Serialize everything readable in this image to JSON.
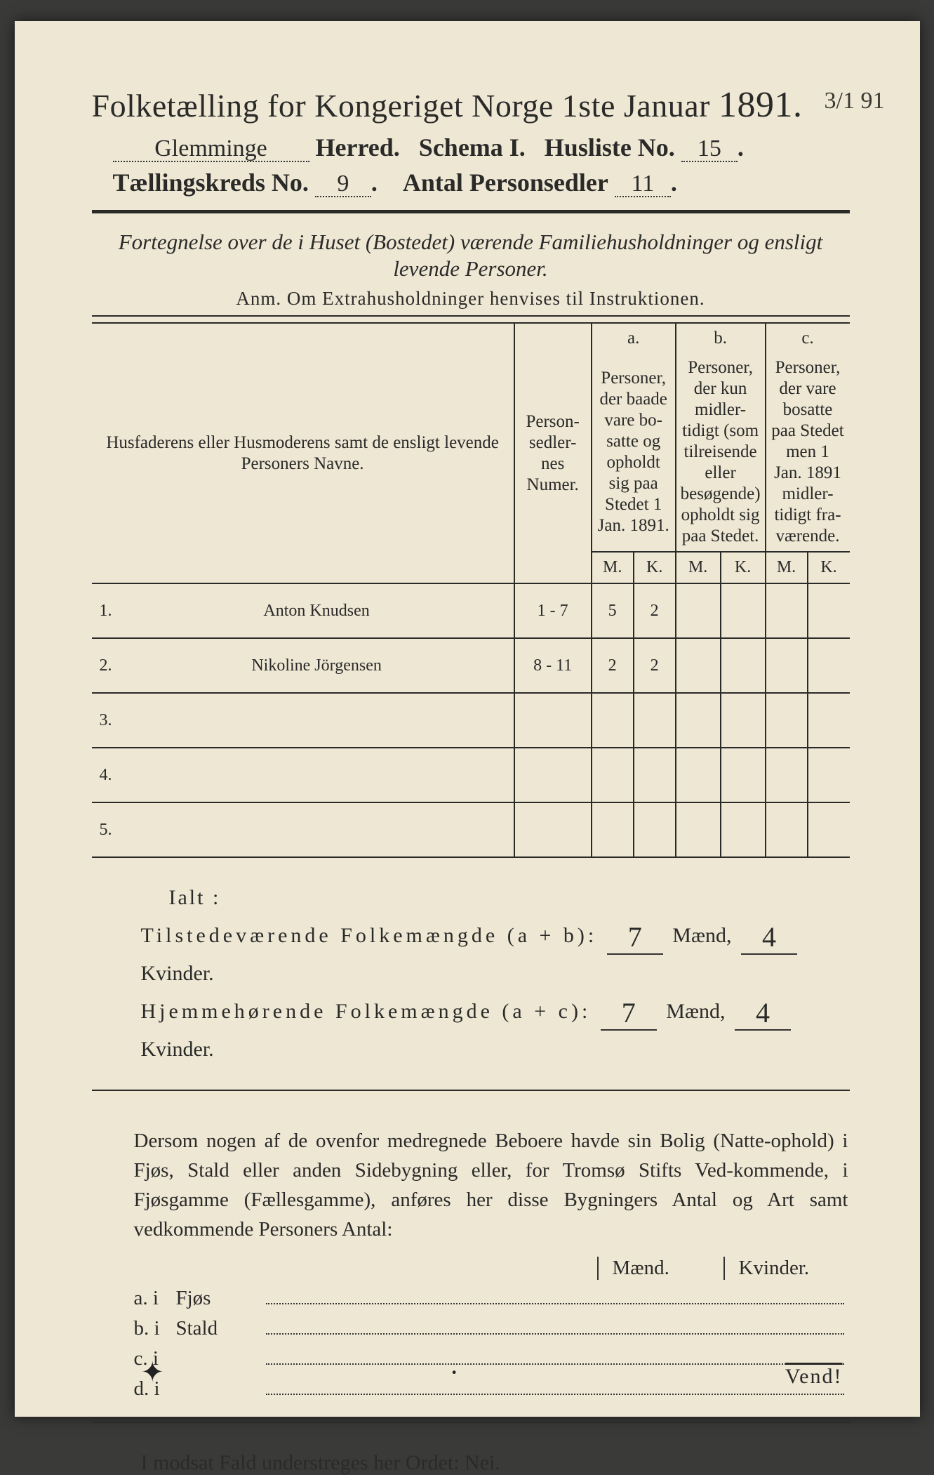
{
  "annotation_top_right": "3/1 91",
  "title": {
    "main_pre": "Folketælling for Kongeriget Norge 1ste Januar",
    "year": "1891."
  },
  "header": {
    "herred_value": "Glemminge",
    "herred_label": "Herred.",
    "schema_label": "Schema I.",
    "husliste_label": "Husliste No.",
    "husliste_value": "15",
    "kreds_label": "Tællingskreds No.",
    "kreds_value": "9",
    "sedler_label": "Antal Personsedler",
    "sedler_value": "11"
  },
  "subtitle_line1": "Fortegnelse over de i Huset (Bostedet) værende Familiehusholdninger og ensligt",
  "subtitle_line2": "levende Personer.",
  "anm": "Anm.  Om Extrahusholdninger henvises til Instruktionen.",
  "table": {
    "head_names": "Husfaderens eller Husmoderens samt de ensligt levende Personers Navne.",
    "head_numer": "Person-sedler-nes Numer.",
    "col_a_label": "a.",
    "col_a_text": "Personer, der baade vare bo-satte og opholdt sig paa Stedet 1 Jan. 1891.",
    "col_b_label": "b.",
    "col_b_text": "Personer, der kun midler-tidigt (som tilreisende eller besøgende) opholdt sig paa Stedet.",
    "col_c_label": "c.",
    "col_c_text": "Personer, der vare bosatte paa Stedet men 1 Jan. 1891 midler-tidigt fra-værende.",
    "M": "M.",
    "K": "K.",
    "rows": [
      {
        "n": "1.",
        "name": "Anton Knudsen",
        "numer": "1 - 7",
        "aM": "5",
        "aK": "2",
        "bM": "",
        "bK": "",
        "cM": "",
        "cK": ""
      },
      {
        "n": "2.",
        "name": "Nikoline Jörgensen",
        "numer": "8 - 11",
        "aM": "2",
        "aK": "2",
        "bM": "",
        "bK": "",
        "cM": "",
        "cK": ""
      },
      {
        "n": "3.",
        "name": "",
        "numer": "",
        "aM": "",
        "aK": "",
        "bM": "",
        "bK": "",
        "cM": "",
        "cK": ""
      },
      {
        "n": "4.",
        "name": "",
        "numer": "",
        "aM": "",
        "aK": "",
        "bM": "",
        "bK": "",
        "cM": "",
        "cK": ""
      },
      {
        "n": "5.",
        "name": "",
        "numer": "",
        "aM": "",
        "aK": "",
        "bM": "",
        "bK": "",
        "cM": "",
        "cK": ""
      }
    ],
    "ticks_under_row2": {
      "aM": "v",
      "aK": "v"
    }
  },
  "ialt": {
    "label": "Ialt :",
    "line1_label": "Tilstedeværende Folkemængde (a + b):",
    "line1_M": "7",
    "line1_K": "4",
    "line2_label": "Hjemmehørende Folkemængde (a + c):",
    "line2_M": "7",
    "line2_K": "4",
    "maend": "Mænd,",
    "kvinder": "Kvinder."
  },
  "para": "Dersom nogen af de ovenfor medregnede Beboere havde sin Bolig (Natte-ophold) i Fjøs, Stald eller anden Sidebygning eller, for Tromsø Stifts Ved-kommende, i Fjøsgamme (Fællesgamme), anføres her disse Bygningers Antal og Art samt vedkommende Personers Antal:",
  "sidebyg": {
    "maend": "Mænd.",
    "kvinder": "Kvinder.",
    "rows": [
      {
        "lbl": "a.  i",
        "type": "Fjøs"
      },
      {
        "lbl": "b.  i",
        "type": "Stald"
      },
      {
        "lbl": "c.  i",
        "type": ""
      },
      {
        "lbl": "d.  i",
        "type": ""
      }
    ]
  },
  "modsat": "I modsat Fald understreges her Ordet:  Nei.",
  "vend": "Vend!",
  "colors": {
    "paper": "#ede7d4",
    "ink": "#2a2a28",
    "pencil_tick": "#6a4a7a",
    "background": "#3a3a38"
  }
}
